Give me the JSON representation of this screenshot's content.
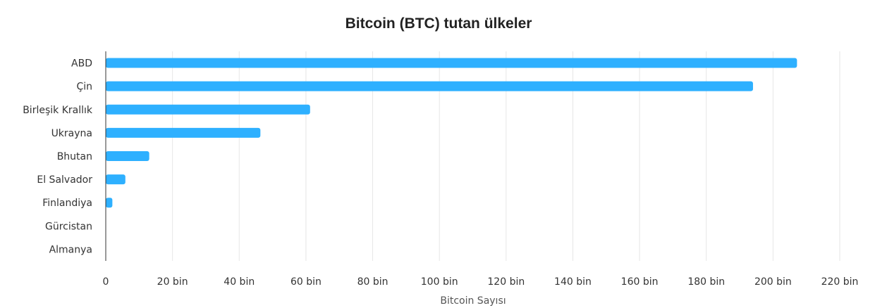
{
  "chart_data": {
    "type": "bar",
    "orientation": "horizontal",
    "title": "Bitcoin (BTC) tutan ülkeler",
    "xlabel": "Bitcoin Sayısı",
    "ylabel": "",
    "categories": [
      "ABD",
      "Çin",
      "Birleşik Krallık",
      "Ukrayna",
      "Bhutan",
      "El Salvador",
      "Finlandiya",
      "Gürcistan",
      "Almanya"
    ],
    "values": [
      207189,
      194000,
      61245,
      46351,
      13029,
      5875,
      1981,
      66,
      0
    ],
    "xlim": [
      0,
      220000
    ],
    "ticks": [
      0,
      20000,
      40000,
      60000,
      80000,
      100000,
      120000,
      140000,
      160000,
      180000,
      200000,
      220000
    ],
    "tick_labels": [
      "0",
      "20 bin",
      "40 bin",
      "60 bin",
      "80 bin",
      "100 bin",
      "120 bin",
      "140 bin",
      "160 bin",
      "180 bin",
      "200 bin",
      "220 bin"
    ],
    "grid": true,
    "legend": "none",
    "bar_color": "#2eb0ff"
  }
}
